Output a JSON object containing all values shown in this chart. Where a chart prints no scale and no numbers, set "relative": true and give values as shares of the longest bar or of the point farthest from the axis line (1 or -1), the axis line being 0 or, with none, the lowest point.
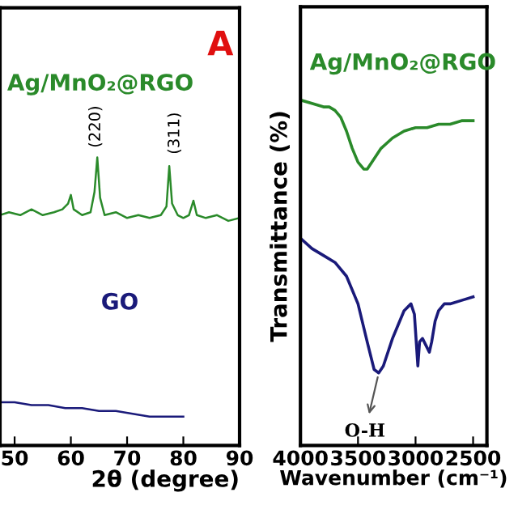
{
  "chart_data": [
    {
      "type": "line",
      "relative": true,
      "xlabel": "2θ (degree)",
      "xlim": [
        47.4,
        90
      ],
      "xticks": [
        50,
        60,
        70,
        80,
        90
      ],
      "tick_labels": "x",
      "grid": false,
      "legend": false,
      "series": [
        {
          "color": "#2a8a2a",
          "x": [
            47.4,
            49,
            51,
            53,
            55,
            57,
            58.5,
            59.5,
            60,
            60.5,
            62,
            63.5,
            64.2,
            64.7,
            65.2,
            66,
            68,
            70,
            72,
            74,
            76,
            77,
            77.5,
            78,
            79,
            80,
            81,
            81.8,
            82.4,
            84,
            86,
            88,
            90
          ],
          "values": [
            0.8,
            0.81,
            0.8,
            0.82,
            0.8,
            0.81,
            0.82,
            0.84,
            0.87,
            0.82,
            0.8,
            0.81,
            0.88,
            1.0,
            0.86,
            0.8,
            0.81,
            0.79,
            0.8,
            0.79,
            0.8,
            0.83,
            0.97,
            0.84,
            0.8,
            0.79,
            0.8,
            0.85,
            0.8,
            0.79,
            0.8,
            0.78,
            0.79
          ]
        },
        {
          "color": "#1a1a7a",
          "x": [
            47.4,
            50,
            53,
            56,
            59,
            62,
            65,
            68,
            71,
            74,
            77,
            80
          ],
          "values": [
            0.15,
            0.15,
            0.14,
            0.14,
            0.13,
            0.13,
            0.12,
            0.12,
            0.11,
            0.1,
            0.1,
            0.1
          ]
        }
      ],
      "annotations": [
        "Ag/MnO₂@RGO",
        "(220)",
        "(311)",
        "GO",
        "A"
      ]
    },
    {
      "type": "line",
      "relative": true,
      "xlabel": "Wavenumber (cm⁻¹)",
      "ylabel": "Transmittance (%)",
      "xlim": [
        4000,
        2380
      ],
      "xticks": [
        4000,
        3500,
        3000,
        2500
      ],
      "tick_labels": "x",
      "grid": false,
      "legend": false,
      "series": [
        {
          "color": "#2a8a2a",
          "x": [
            4000,
            3900,
            3800,
            3750,
            3700,
            3650,
            3600,
            3550,
            3500,
            3450,
            3420,
            3380,
            3300,
            3200,
            3100,
            3000,
            2900,
            2800,
            2700,
            2600,
            2500
          ],
          "values": [
            1.0,
            0.99,
            0.98,
            0.98,
            0.97,
            0.95,
            0.91,
            0.86,
            0.82,
            0.8,
            0.8,
            0.82,
            0.86,
            0.89,
            0.91,
            0.92,
            0.92,
            0.93,
            0.93,
            0.94,
            0.94
          ]
        },
        {
          "color": "#1a1a7a",
          "x": [
            4000,
            3900,
            3800,
            3700,
            3600,
            3500,
            3420,
            3360,
            3320,
            3280,
            3200,
            3150,
            3100,
            3040,
            3010,
            2990,
            2980,
            2965,
            2940,
            2910,
            2880,
            2860,
            2830,
            2800,
            2750,
            2700,
            2600,
            2500
          ],
          "values": [
            0.6,
            0.57,
            0.55,
            0.53,
            0.49,
            0.41,
            0.3,
            0.22,
            0.21,
            0.23,
            0.31,
            0.35,
            0.39,
            0.41,
            0.38,
            0.28,
            0.23,
            0.3,
            0.31,
            0.29,
            0.27,
            0.3,
            0.36,
            0.39,
            0.41,
            0.41,
            0.42,
            0.43
          ]
        }
      ],
      "annotations": [
        {
          "text": "O-H",
          "x": 3320,
          "y": 0.21
        },
        "Ag/MnO₂@RGO"
      ]
    }
  ]
}
